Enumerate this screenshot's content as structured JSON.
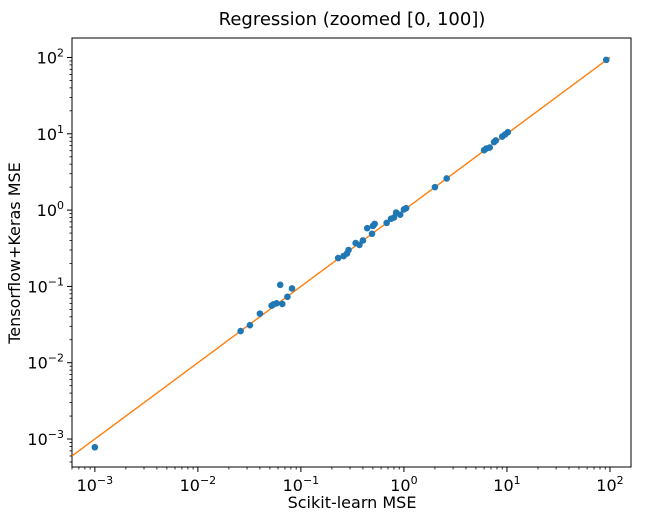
{
  "chart_data": {
    "type": "scatter",
    "title": "Regression (zoomed [0, 100])",
    "xlabel": "Scikit-learn MSE",
    "ylabel": "Tensorflow+Keras MSE",
    "xscale": "log",
    "yscale": "log",
    "xlim": [
      0.0006,
      160
    ],
    "ylim": [
      0.00043,
      180
    ],
    "grid": false,
    "legend": "none",
    "x_ticks": [
      0.001,
      0.01,
      0.1,
      1,
      10,
      100
    ],
    "y_ticks": [
      0.001,
      0.01,
      0.1,
      1,
      10,
      100
    ],
    "tick_labels": [
      "10",
      "10",
      "10",
      "10",
      "10",
      "10"
    ],
    "tick_exponents": [
      "−3",
      "−2",
      "−1",
      "0",
      "1",
      "2"
    ],
    "colors": {
      "points": "#1f77b4",
      "reference_line": "#ff7f0e",
      "axes": "#000000"
    },
    "reference_line": {
      "x": [
        0.0006,
        100
      ],
      "y": [
        0.0006,
        100
      ]
    },
    "series": [
      {
        "points": [
          [
            0.001,
            0.00078
          ],
          [
            0.026,
            0.026
          ],
          [
            0.032,
            0.031
          ],
          [
            0.04,
            0.044
          ],
          [
            0.052,
            0.056
          ],
          [
            0.054,
            0.058
          ],
          [
            0.058,
            0.06
          ],
          [
            0.063,
            0.105
          ],
          [
            0.066,
            0.059
          ],
          [
            0.074,
            0.073
          ],
          [
            0.082,
            0.094
          ],
          [
            0.23,
            0.235
          ],
          [
            0.26,
            0.25
          ],
          [
            0.28,
            0.27
          ],
          [
            0.29,
            0.3
          ],
          [
            0.34,
            0.37
          ],
          [
            0.37,
            0.35
          ],
          [
            0.4,
            0.4
          ],
          [
            0.44,
            0.58
          ],
          [
            0.49,
            0.49
          ],
          [
            0.5,
            0.62
          ],
          [
            0.52,
            0.66
          ],
          [
            0.68,
            0.68
          ],
          [
            0.75,
            0.77
          ],
          [
            0.8,
            0.8
          ],
          [
            0.84,
            0.93
          ],
          [
            0.92,
            0.87
          ],
          [
            1.0,
            1.02
          ],
          [
            1.05,
            1.06
          ],
          [
            2.0,
            2.0
          ],
          [
            2.6,
            2.6
          ],
          [
            6.0,
            6.1
          ],
          [
            6.3,
            6.4
          ],
          [
            6.8,
            6.6
          ],
          [
            7.5,
            7.8
          ],
          [
            7.8,
            8.2
          ],
          [
            9.0,
            9.2
          ],
          [
            9.6,
            9.8
          ],
          [
            10.2,
            10.5
          ],
          [
            92,
            93
          ]
        ]
      }
    ]
  }
}
